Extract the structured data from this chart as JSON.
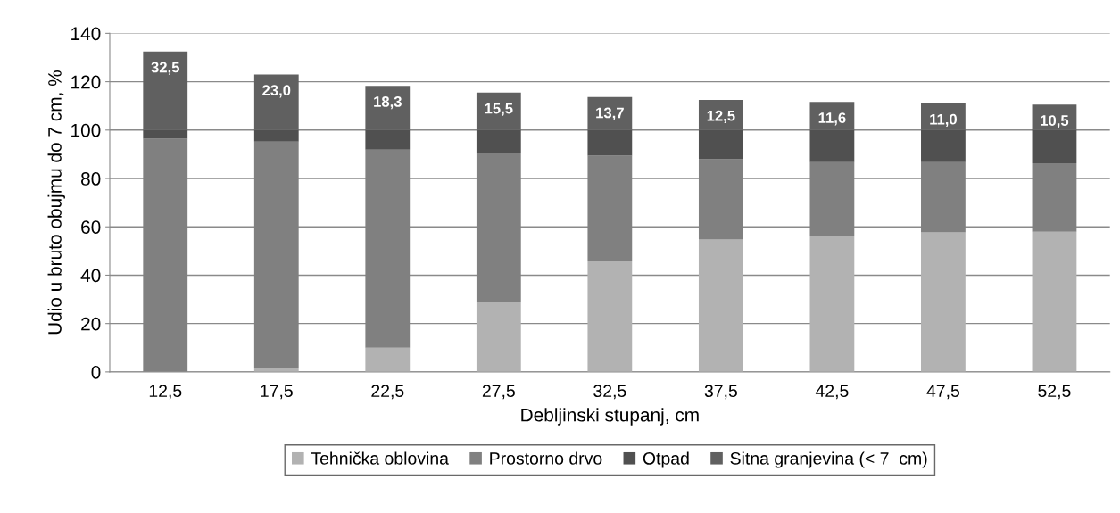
{
  "chart_data": {
    "type": "bar",
    "stacked": true,
    "xlabel": "Debljinski stupanj, cm",
    "ylabel": "Udio u bruto obujmu do 7 cm, %",
    "categories": [
      "12,5",
      "17,5",
      "22,5",
      "27,5",
      "32,5",
      "37,5",
      "42,5",
      "47,5",
      "52,5"
    ],
    "series": [
      {
        "name": "Tehnička oblovina",
        "color": "#b2b2b2",
        "values": [
          0,
          1.6,
          10.0,
          28.7,
          45.7,
          54.7,
          56.1,
          57.7,
          58.0
        ]
      },
      {
        "name": "Prostorno drvo",
        "color": "#808080",
        "values": [
          96.4,
          93.6,
          81.9,
          61.6,
          43.7,
          33.2,
          30.6,
          29.0,
          28.3
        ]
      },
      {
        "name": "Otpad",
        "color": "#505050",
        "values": [
          3.6,
          4.8,
          8.1,
          9.7,
          10.6,
          12.1,
          13.3,
          13.3,
          13.7
        ]
      },
      {
        "name": "Sitna granjevina (< 7  cm)",
        "color": "#606060",
        "values": [
          32.5,
          23.0,
          18.3,
          15.5,
          13.7,
          12.5,
          11.6,
          11.0,
          10.5
        ],
        "value_labels": [
          "32,5",
          "23,0",
          "18,3",
          "15,5",
          "13,7",
          "12,5",
          "11,6",
          "11,0",
          "10,5"
        ]
      }
    ],
    "ylim": [
      0,
      140
    ],
    "yticks": [
      0,
      20,
      40,
      60,
      80,
      100,
      120,
      140
    ],
    "grid": "y",
    "legend": "bottom"
  }
}
